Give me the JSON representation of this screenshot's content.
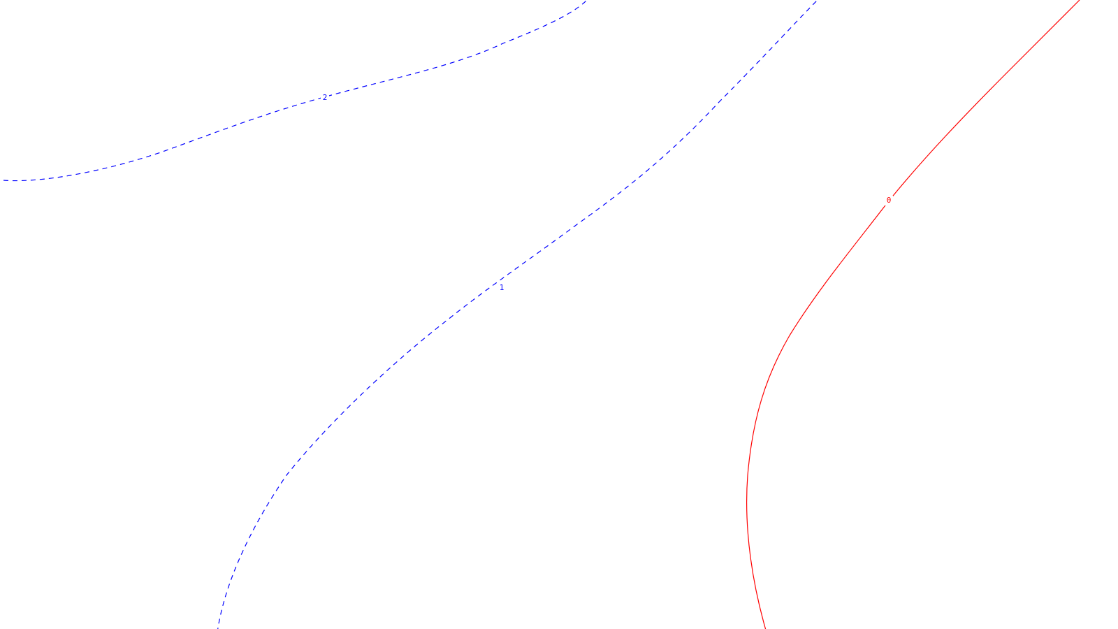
{
  "chart_data": {
    "type": "contour",
    "title": "",
    "xlabel": "",
    "ylabel": "",
    "grid": false,
    "legend": "none",
    "levels": [
      {
        "level": "2",
        "label": "2",
        "color": "#0000ff",
        "linestyle": "dashed"
      },
      {
        "level": "1",
        "label": "1",
        "color": "#0000ff",
        "linestyle": "dashed"
      },
      {
        "level": "0",
        "label": "0",
        "color": "#ff0000",
        "linestyle": "solid"
      }
    ]
  }
}
